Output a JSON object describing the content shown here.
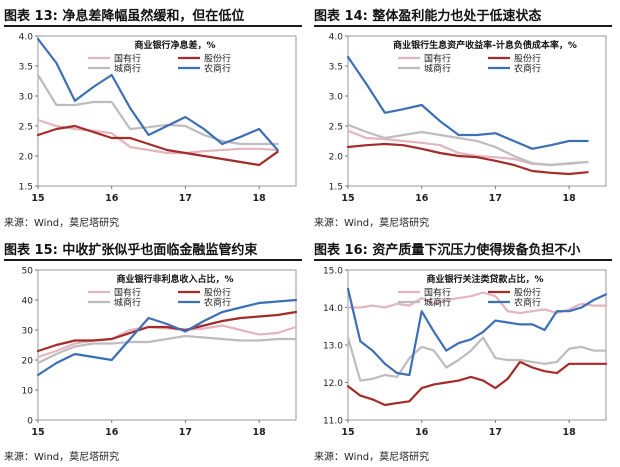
{
  "charts": [
    {
      "title": "图表 13:  净息差降幅虽然缓和，但在低位",
      "source": "来源：Wind，莫尼塔研究",
      "chart_data": {
        "type": "line",
        "title": "商业银行净息差，%",
        "x": [
          15.0,
          15.25,
          15.5,
          15.75,
          16.0,
          16.25,
          16.5,
          16.75,
          17.0,
          17.25,
          17.5,
          17.75,
          18.0,
          18.25
        ],
        "ylim": [
          1.5,
          4.0
        ],
        "yticks": [
          "1.5",
          "2.0",
          "2.5",
          "3.0",
          "3.5",
          "4.0"
        ],
        "yticks_values": [
          1.5,
          2.0,
          2.5,
          3.0,
          3.5,
          4.0
        ],
        "xticks": [
          "15",
          "16",
          "17",
          "18"
        ],
        "xticks_values": [
          15,
          16,
          17,
          18
        ],
        "legend_layout": {
          "left": [
            "国有行",
            "城商行"
          ],
          "right": [
            "股份行",
            "农商行"
          ]
        },
        "series": [
          {
            "name": "国有行",
            "color": "#e3b5bd",
            "values": [
              2.6,
              2.5,
              2.45,
              2.42,
              2.38,
              2.15,
              2.1,
              2.05,
              2.05,
              2.08,
              2.1,
              2.12,
              2.12,
              2.1
            ]
          },
          {
            "name": "股份行",
            "color": "#a52a2a",
            "values": [
              2.35,
              2.45,
              2.5,
              2.4,
              2.3,
              2.3,
              2.2,
              2.1,
              2.05,
              2.0,
              1.95,
              1.9,
              1.85,
              2.07
            ]
          },
          {
            "name": "城商行",
            "color": "#bdbdbd",
            "values": [
              3.35,
              2.85,
              2.85,
              2.9,
              2.9,
              2.45,
              2.48,
              2.52,
              2.5,
              2.35,
              2.25,
              2.2,
              2.2,
              2.2
            ]
          },
          {
            "name": "农商行",
            "color": "#3d6fb6",
            "values": [
              3.95,
              3.55,
              2.92,
              3.15,
              3.35,
              2.8,
              2.35,
              2.5,
              2.65,
              2.45,
              2.2,
              2.32,
              2.45,
              2.1
            ]
          }
        ]
      }
    },
    {
      "title": "图表 14:  整体盈利能力也处于低速状态",
      "source": "来源：Wind，莫尼塔研究",
      "chart_data": {
        "type": "line",
        "title": "商业银行生息资产收益率-计息负债成本率，%",
        "x": [
          15.0,
          15.25,
          15.5,
          15.75,
          16.0,
          16.25,
          16.5,
          16.75,
          17.0,
          17.25,
          17.5,
          17.75,
          18.0,
          18.25
        ],
        "ylim": [
          1.5,
          4.0
        ],
        "yticks": [
          "1.5",
          "2.0",
          "2.5",
          "3.0",
          "3.5",
          "4.0"
        ],
        "yticks_values": [
          1.5,
          2.0,
          2.5,
          3.0,
          3.5,
          4.0
        ],
        "xticks": [
          "15",
          "16",
          "17",
          "18"
        ],
        "xticks_values": [
          15,
          16,
          17,
          18
        ],
        "legend_layout": {
          "left": [
            "国有行",
            "城商行"
          ],
          "right": [
            "股份行",
            "农商行"
          ]
        },
        "series": [
          {
            "name": "国有行",
            "color": "#e3b5bd",
            "values": [
              2.42,
              2.3,
              2.28,
              2.25,
              2.22,
              2.18,
              2.05,
              2.0,
              1.98,
              1.95,
              1.87,
              1.85,
              1.87,
              1.9
            ]
          },
          {
            "name": "股份行",
            "color": "#a52a2a",
            "values": [
              2.15,
              2.18,
              2.2,
              2.18,
              2.12,
              2.05,
              2.0,
              1.98,
              1.92,
              1.85,
              1.75,
              1.72,
              1.7,
              1.73
            ]
          },
          {
            "name": "城商行",
            "color": "#bdbdbd",
            "values": [
              2.52,
              2.4,
              2.3,
              2.35,
              2.4,
              2.35,
              2.3,
              2.25,
              2.15,
              2.0,
              1.88,
              1.85,
              1.88,
              1.9
            ]
          },
          {
            "name": "农商行",
            "color": "#3d6fb6",
            "values": [
              3.65,
              3.2,
              2.72,
              2.78,
              2.85,
              2.58,
              2.35,
              2.35,
              2.38,
              2.25,
              2.12,
              2.18,
              2.25,
              2.25
            ]
          }
        ]
      }
    },
    {
      "title": "图表 15:  中收扩张似乎也面临金融监管约束",
      "source": "来源：Wind，莫尼塔研究",
      "chart_data": {
        "type": "line",
        "title": "商业银行非利息收入占比，%",
        "x": [
          15.0,
          15.25,
          15.5,
          15.75,
          16.0,
          16.25,
          16.5,
          16.75,
          17.0,
          17.25,
          17.5,
          17.75,
          18.0,
          18.25,
          18.5
        ],
        "ylim": [
          0,
          50
        ],
        "yticks": [
          "0",
          "10",
          "20",
          "30",
          "40",
          "50"
        ],
        "yticks_values": [
          0,
          10,
          20,
          30,
          40,
          50
        ],
        "xticks": [
          "15",
          "16",
          "17",
          "18"
        ],
        "xticks_values": [
          15,
          16,
          17,
          18
        ],
        "legend_layout": {
          "left": [
            "国有行",
            "城商行"
          ],
          "right": [
            "股份行",
            "农商行"
          ]
        },
        "series": [
          {
            "name": "国有行",
            "color": "#e3b5bd",
            "values": [
              21,
              23,
              25.5,
              26.5,
              27,
              30,
              31,
              30.5,
              30,
              30.5,
              31.5,
              30,
              28.5,
              29,
              31
            ]
          },
          {
            "name": "股份行",
            "color": "#a52a2a",
            "values": [
              23,
              25,
              26.5,
              26.5,
              27,
              29,
              31,
              31,
              30,
              31.5,
              33,
              34,
              34.5,
              35,
              36
            ]
          },
          {
            "name": "城商行",
            "color": "#bdbdbd",
            "values": [
              19,
              22,
              24.5,
              25.5,
              25.5,
              26,
              26,
              27,
              28,
              27.5,
              27,
              26.5,
              26.5,
              27,
              27
            ]
          },
          {
            "name": "农商行",
            "color": "#3d6fb6",
            "values": [
              15,
              19,
              22,
              21,
              20,
              27,
              34,
              32,
              29.5,
              33,
              36,
              37.5,
              39,
              39.5,
              40
            ]
          }
        ]
      }
    },
    {
      "title": "图表 16:  资产质量下沉压力使得拨备负担不小",
      "source": "来源：Wind，莫尼塔研究",
      "chart_data": {
        "type": "line",
        "title": "商业银行关注类贷款占比，%",
        "x": [
          15.0,
          15.1667,
          15.3333,
          15.5,
          15.6667,
          15.8333,
          16.0,
          16.1667,
          16.3333,
          16.5,
          16.6667,
          16.8333,
          17.0,
          17.1667,
          17.3333,
          17.5,
          17.6667,
          17.8333,
          18.0,
          18.1667,
          18.3333,
          18.5
        ],
        "ylim": [
          11.0,
          15.0
        ],
        "yticks": [
          "11.0",
          "12.0",
          "13.0",
          "14.0",
          "15.0"
        ],
        "yticks_values": [
          11.0,
          12.0,
          13.0,
          14.0,
          15.0
        ],
        "xticks": [
          "15",
          "16",
          "17",
          "18"
        ],
        "xticks_values": [
          15,
          16,
          17,
          18
        ],
        "legend_layout": {
          "left": [
            "国有行",
            "城商行"
          ],
          "right": [
            "股份行",
            "农商行"
          ]
        },
        "series": [
          {
            "name": "国有行",
            "color": "#e3b5bd",
            "values": [
              14.0,
              14.0,
              14.05,
              14.0,
              14.1,
              14.05,
              14.25,
              14.1,
              14.2,
              14.25,
              14.3,
              14.4,
              14.3,
              13.9,
              13.85,
              13.9,
              13.95,
              13.85,
              13.95,
              14.1,
              14.05,
              14.05
            ]
          },
          {
            "name": "股份行",
            "color": "#a52a2a",
            "values": [
              11.9,
              11.65,
              11.55,
              11.4,
              11.45,
              11.5,
              11.85,
              11.95,
              12.0,
              12.05,
              12.15,
              12.05,
              11.85,
              12.1,
              12.55,
              12.4,
              12.3,
              12.25,
              12.5,
              12.5,
              12.5,
              12.5
            ]
          },
          {
            "name": "城商行",
            "color": "#bdbdbd",
            "values": [
              13.2,
              12.05,
              12.1,
              12.2,
              12.15,
              12.65,
              12.95,
              12.85,
              12.4,
              12.6,
              12.85,
              13.2,
              12.65,
              12.6,
              12.6,
              12.55,
              12.5,
              12.55,
              12.9,
              12.95,
              12.85,
              12.85
            ]
          },
          {
            "name": "农商行",
            "color": "#3d6fb6",
            "values": [
              14.5,
              13.1,
              12.85,
              12.5,
              12.25,
              12.2,
              13.9,
              13.35,
              12.85,
              13.05,
              13.15,
              13.35,
              13.65,
              13.6,
              13.55,
              13.55,
              13.4,
              13.9,
              13.9,
              14.0,
              14.2,
              14.35
            ]
          }
        ]
      }
    }
  ]
}
